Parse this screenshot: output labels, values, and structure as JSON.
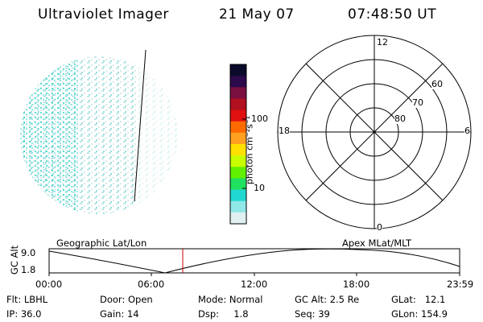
{
  "header": {
    "instrument": "Ultraviolet Imager",
    "date": "21 May 07",
    "time": "07:48:50 UT"
  },
  "colorbar": {
    "unit_label": "photon cm⁻²s⁻¹",
    "ticks": [
      "100",
      "10"
    ],
    "colors": [
      "#0a0a2a",
      "#2a0a4a",
      "#7a1040",
      "#b01020",
      "#e01010",
      "#ff6a00",
      "#ffa020",
      "#ffe000",
      "#c8ff00",
      "#60f000",
      "#20e060",
      "#20d8d0",
      "#90e8e8",
      "#e0f0f0"
    ]
  },
  "polar_plot": {
    "mlt_labels": {
      "top": "12",
      "bottom": "0",
      "left": "18",
      "right": "6"
    },
    "mlat_labels": [
      "60",
      "70",
      "80"
    ]
  },
  "timeline": {
    "left_title": "Geographic Lat/Lon",
    "right_title": "Apex MLat/MLT",
    "ylabel": "GC Alt",
    "yticks": [
      "9.0",
      "1.8"
    ],
    "xticks": [
      "00:00",
      "06:00",
      "12:00",
      "18:00",
      "23:59"
    ],
    "marker_color": "#cc0000"
  },
  "footer": {
    "flt": "Flt: LBHL",
    "ip": "IP: 36.0",
    "door": "Door: Open",
    "gain": "Gain: 14",
    "mode": "Mode: Normal",
    "dsp": "Dsp:     1.8",
    "gc_alt": "GC Alt: 2.5 Re",
    "seq": "Seq: 39",
    "glat": "GLat:   12.1",
    "glon": "GLon: 154.9"
  }
}
